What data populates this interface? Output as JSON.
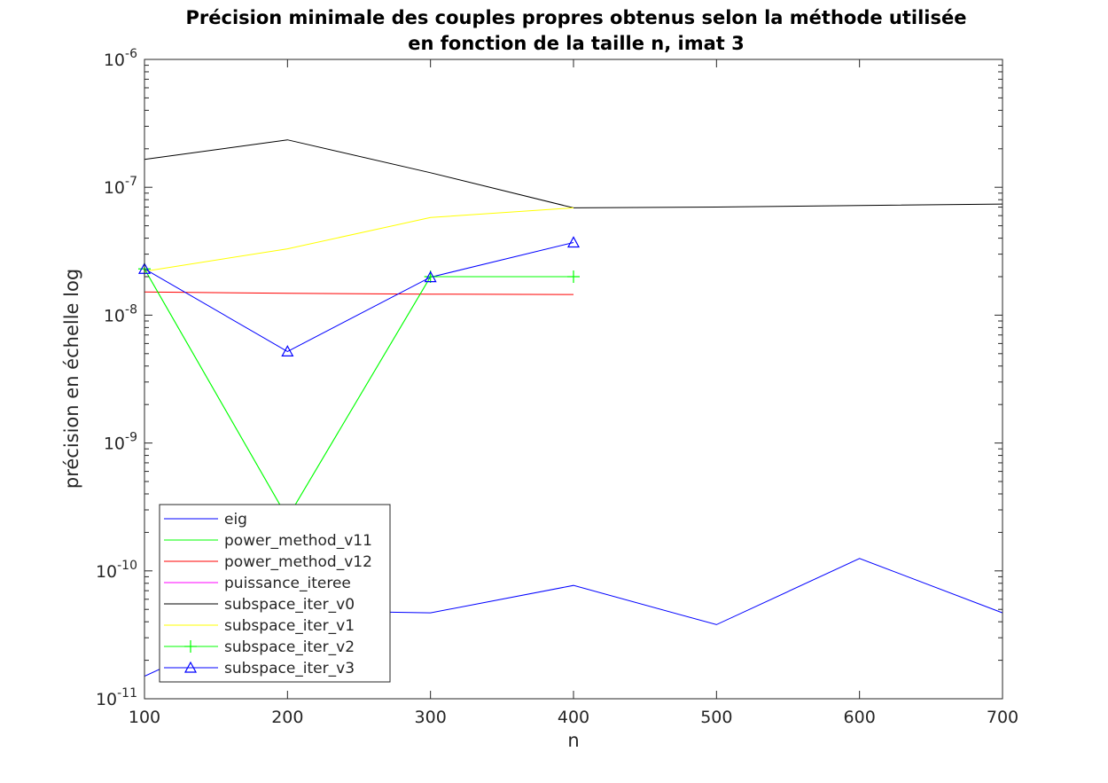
{
  "chart_data": {
    "type": "line",
    "title_lines": [
      "Précision minimale des couples propres obtenus selon la méthode utilisée",
      "en fonction de la taille n, imat 3"
    ],
    "xlabel": "n",
    "ylabel": "précision en échelle log",
    "xlim": [
      100,
      700
    ],
    "ylim": [
      1e-11,
      1e-06
    ],
    "yscale": "log",
    "grid": false,
    "box": true,
    "legend_position": "bottom-left",
    "x_ticks": [
      100,
      200,
      300,
      400,
      500,
      600,
      700
    ],
    "x_tick_labels": [
      "100",
      "200",
      "300",
      "400",
      "500",
      "600",
      "700"
    ],
    "y_ticks": [
      {
        "value": 1e-11,
        "base": "10",
        "exp": "-11"
      },
      {
        "value": 1e-10,
        "base": "10",
        "exp": "-10"
      },
      {
        "value": 1e-09,
        "base": "10",
        "exp": "-9"
      },
      {
        "value": 1e-08,
        "base": "10",
        "exp": "-8"
      },
      {
        "value": 1e-07,
        "base": "10",
        "exp": "-7"
      },
      {
        "value": 1e-06,
        "base": "10",
        "exp": "-6"
      }
    ],
    "series": [
      {
        "name": "eig",
        "color": "#0000ff",
        "marker": "none",
        "x": [
          100,
          200,
          300,
          400,
          500,
          600,
          700
        ],
        "y": [
          1.5e-11,
          4.9e-11,
          4.7e-11,
          7.7e-11,
          3.8e-11,
          1.25e-10,
          4.7e-11
        ]
      },
      {
        "name": "power_method_v11",
        "color": "#00ff00",
        "marker": "none",
        "x": [
          100,
          200,
          300,
          400
        ],
        "y": [
          2.3e-08,
          2.6e-10,
          2e-08,
          2e-08
        ]
      },
      {
        "name": "power_method_v12",
        "color": "#ff0000",
        "marker": "none",
        "x": [
          100,
          200,
          300,
          400
        ],
        "y": [
          1.52e-08,
          1.48e-08,
          1.46e-08,
          1.45e-08
        ]
      },
      {
        "name": "puissance_iteree",
        "color": "#ff00ff",
        "marker": "none",
        "x": [],
        "y": []
      },
      {
        "name": "subspace_iter_v0",
        "color": "#000000",
        "marker": "none",
        "x": [
          100,
          200,
          300,
          400,
          500,
          600,
          700
        ],
        "y": [
          1.65e-07,
          2.35e-07,
          1.3e-07,
          6.9e-08,
          7e-08,
          7.2e-08,
          7.4e-08
        ]
      },
      {
        "name": "subspace_iter_v1",
        "color": "#ffff00",
        "marker": "none",
        "x": [
          100,
          200,
          300,
          400
        ],
        "y": [
          2.2e-08,
          3.3e-08,
          5.8e-08,
          6.9e-08
        ]
      },
      {
        "name": "subspace_iter_v2",
        "color": "#00ff00",
        "marker": "plus",
        "x": [
          100,
          200,
          300,
          400
        ],
        "y": [
          2.3e-08,
          2.6e-10,
          2e-08,
          2e-08
        ]
      },
      {
        "name": "subspace_iter_v3",
        "color": "#0000ff",
        "marker": "triangle",
        "x": [
          100,
          200,
          300,
          400
        ],
        "y": [
          2.3e-08,
          5.2e-09,
          1.98e-08,
          3.7e-08
        ]
      }
    ]
  }
}
